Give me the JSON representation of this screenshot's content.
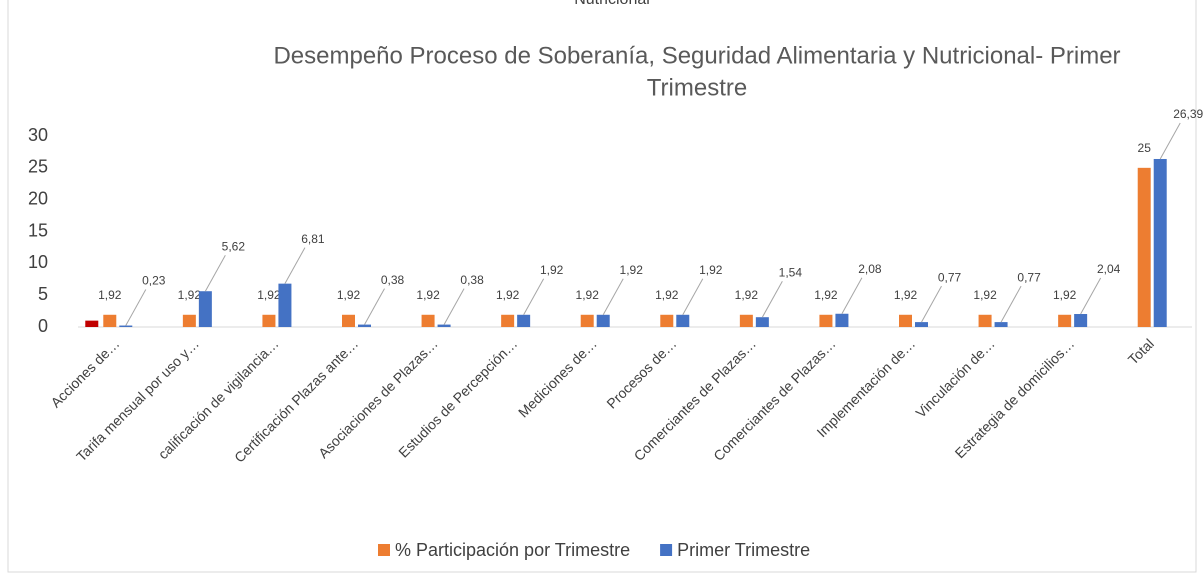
{
  "chart_data": {
    "type": "bar",
    "supertitle": "Nutricional",
    "title": [
      "Desempeño Proceso de Soberanía, Seguridad Alimentaria y Nutricional- Primer",
      "Trimestre"
    ],
    "categories": [
      "Acciones de…",
      "Tarifa mensual por uso y…",
      "calificación de vigilancia…",
      "Certificación Plazas ante…",
      "Asociaciones de Plazas…",
      "Estudios de Percepción…",
      "Mediciones de…",
      "Procesos de…",
      "Comerciantes de Plazas…",
      "Comerciantes de Plazas…",
      "Implementación de…",
      "Vinculación de…",
      "Estrategia de domicilios…",
      "Total"
    ],
    "series": [
      {
        "color": "#c00000",
        "values": [
          1,
          null,
          null,
          null,
          null,
          null,
          null,
          null,
          null,
          null,
          null,
          null,
          null,
          null
        ]
      },
      {
        "name": "% Participación por Trimestre",
        "color": "#ed7d31",
        "values": [
          1.92,
          1.92,
          1.92,
          1.92,
          1.92,
          1.92,
          1.92,
          1.92,
          1.92,
          1.92,
          1.92,
          1.92,
          1.92,
          25
        ],
        "value_labels": [
          "1,92",
          "1,92",
          "1,92",
          "1,92",
          "1,92",
          "1,92",
          "1,92",
          "1,92",
          "1,92",
          "1,92",
          "1,92",
          "1,92",
          "1,92",
          "25"
        ]
      },
      {
        "name": "Primer Trimestre",
        "color": "#4472c4",
        "values": [
          0.23,
          5.62,
          6.81,
          0.38,
          0.38,
          1.92,
          1.92,
          1.92,
          1.54,
          2.08,
          0.77,
          0.77,
          2.04,
          26.39
        ],
        "value_labels": [
          "0,23",
          "5,62",
          "6,81",
          "0,38",
          "0,38",
          "1,92",
          "1,92",
          "1,92",
          "1,54",
          "2,08",
          "0,77",
          "0,77",
          "2,04",
          "26,39"
        ]
      }
    ],
    "ylim": [
      0,
      30
    ],
    "yticks": [
      0,
      5,
      10,
      15,
      20,
      25,
      30
    ],
    "grid": false,
    "legend": "bottom"
  }
}
